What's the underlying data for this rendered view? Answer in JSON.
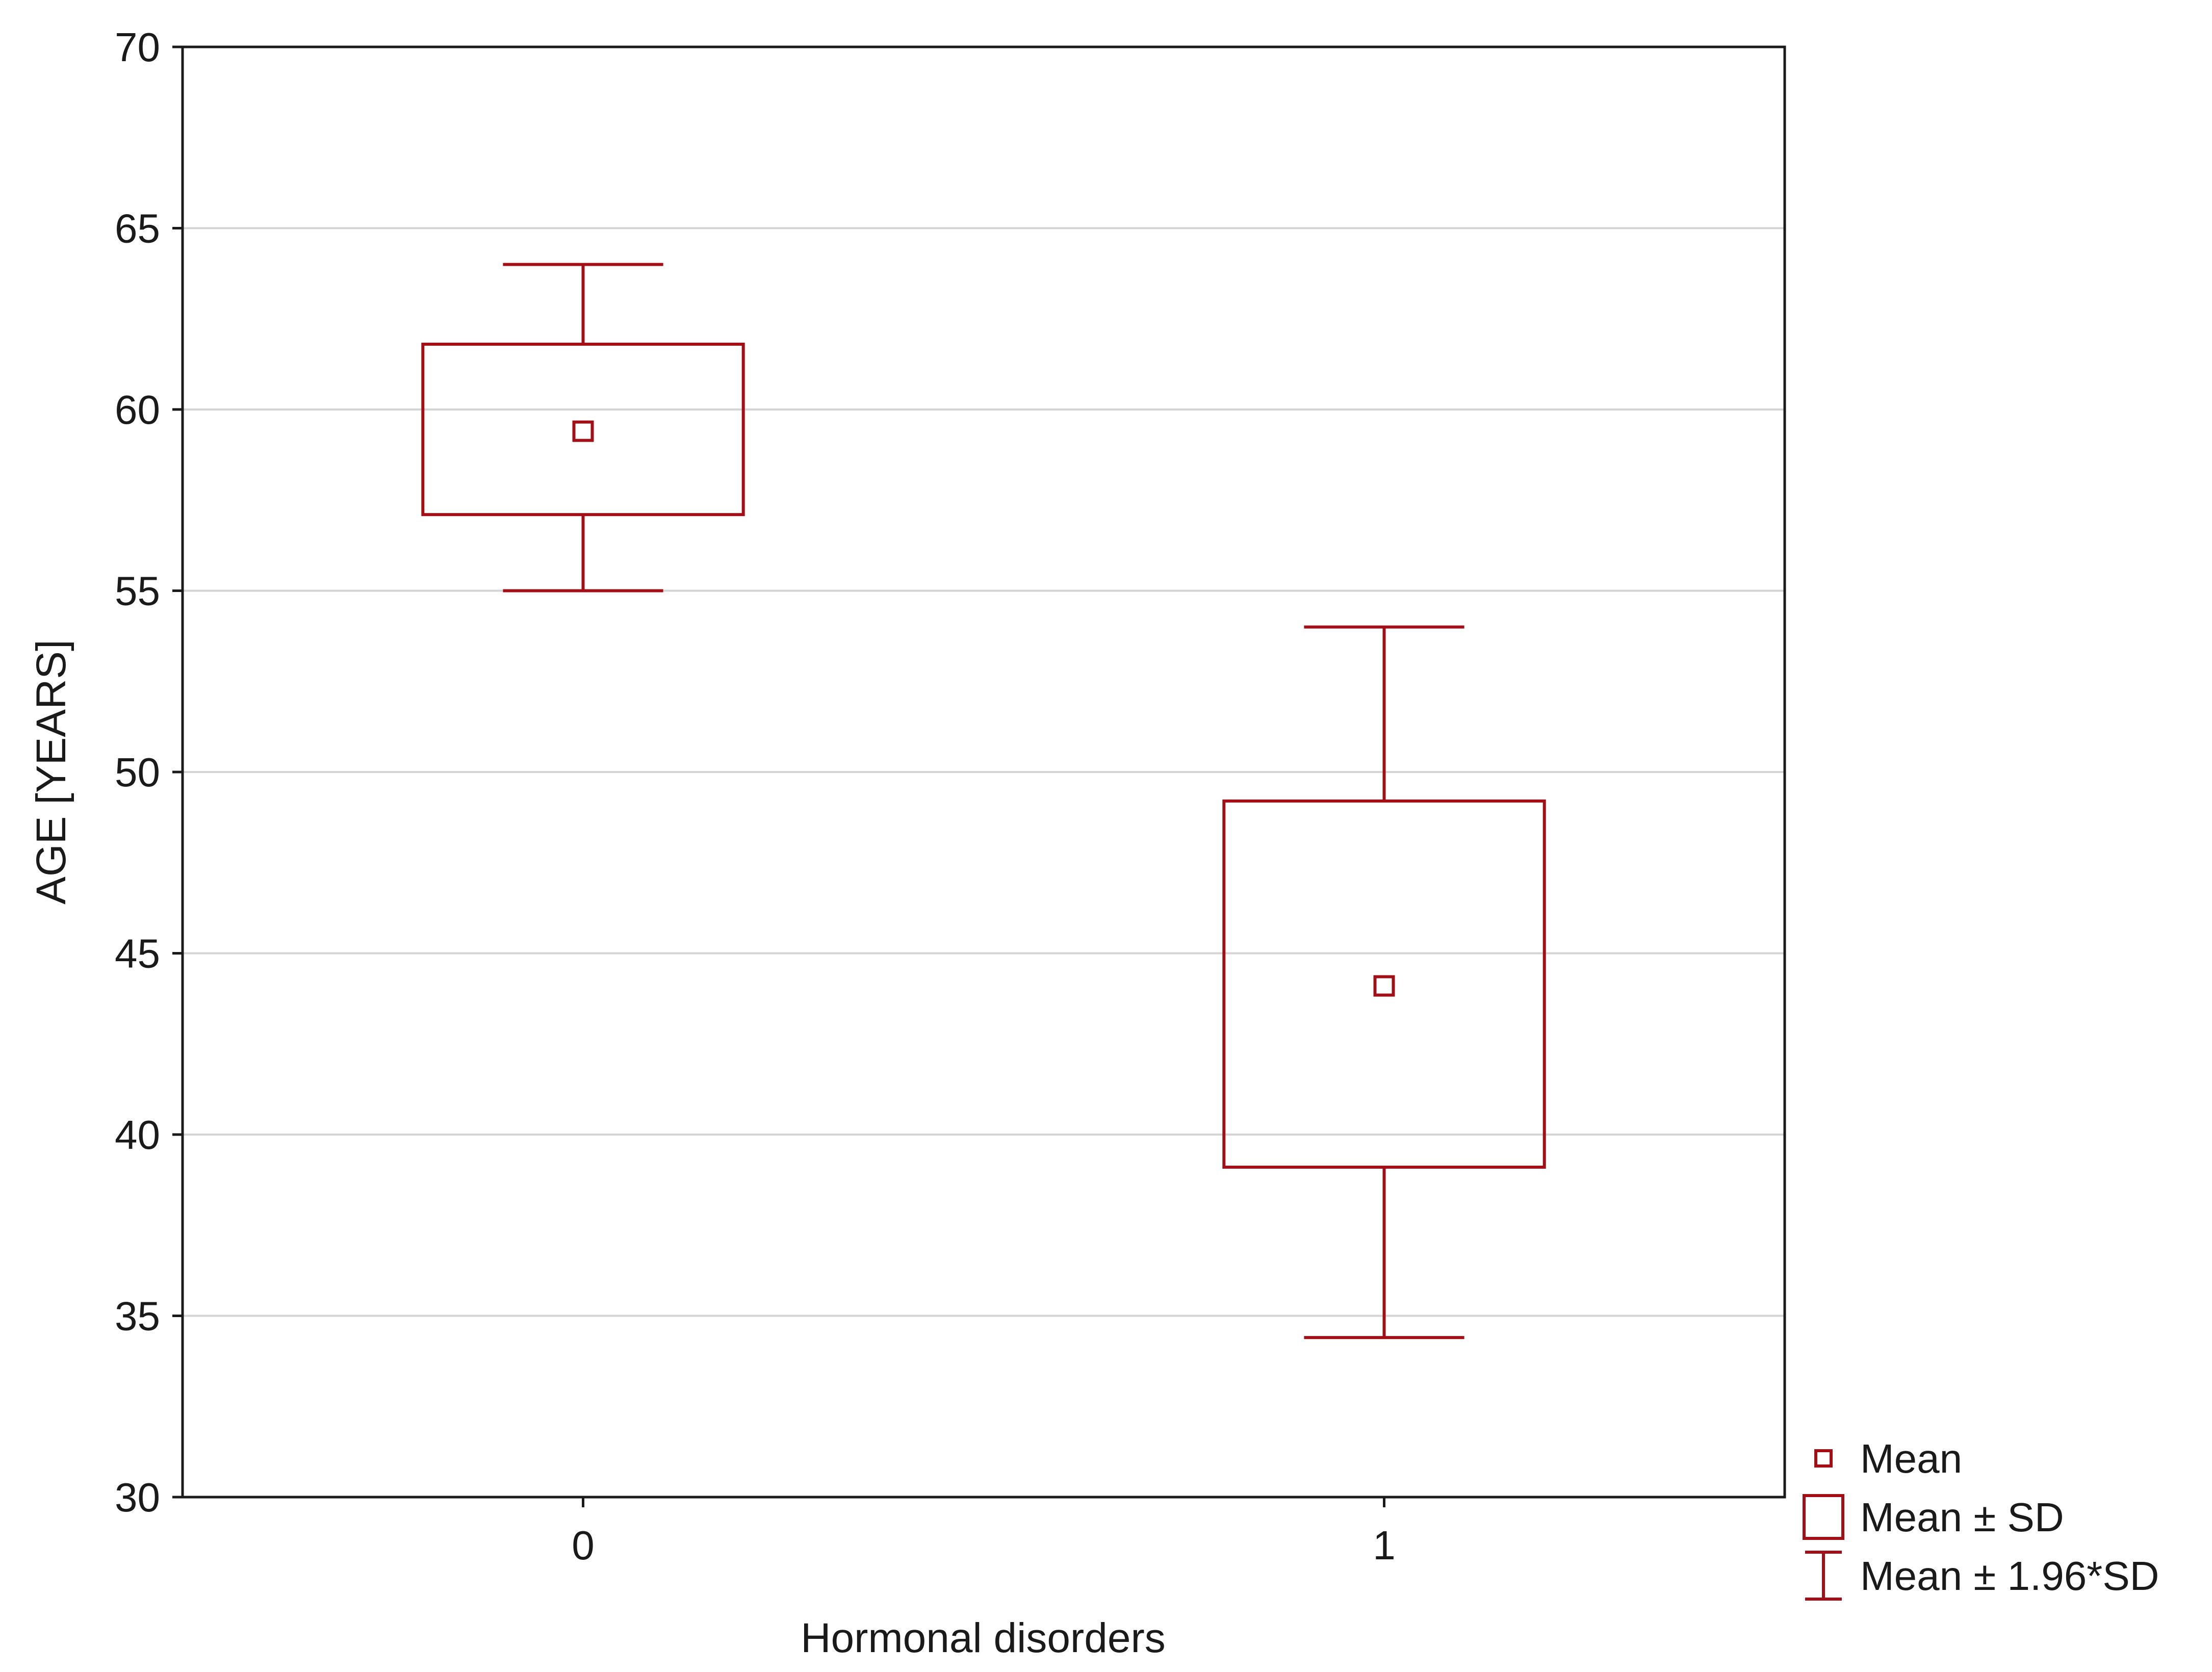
{
  "chart_data": {
    "type": "box",
    "title": "",
    "xlabel": "Hormonal disorders",
    "ylabel": "AGE [YEARS]",
    "ylim": [
      30,
      70
    ],
    "yticks": [
      30,
      35,
      40,
      45,
      50,
      55,
      60,
      65,
      70
    ],
    "grid": true,
    "categories": [
      "0",
      "1"
    ],
    "series": [
      {
        "category": "0",
        "mean": 59.4,
        "sd_low": 57.1,
        "sd_high": 61.8,
        "ci_low": 55.0,
        "ci_high": 64.0
      },
      {
        "category": "1",
        "mean": 44.1,
        "sd_low": 39.1,
        "sd_high": 49.2,
        "ci_low": 34.4,
        "ci_high": 54.0
      }
    ],
    "legend": {
      "position": "bottom-right",
      "items": [
        {
          "symbol": "mean",
          "label": "Mean"
        },
        {
          "symbol": "box",
          "label": "Mean ± SD"
        },
        {
          "symbol": "whisker",
          "label": "Mean ± 1.96*SD"
        }
      ]
    },
    "colors": {
      "series": "#a30f16",
      "axis": "#1a1a1a",
      "grid": "#d4d4d4"
    }
  }
}
